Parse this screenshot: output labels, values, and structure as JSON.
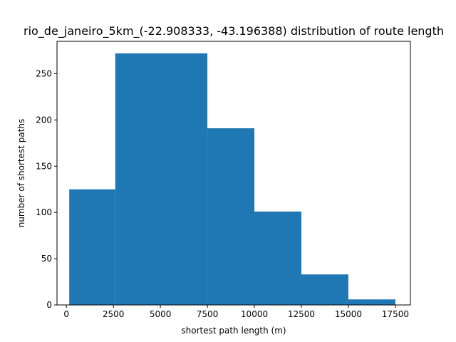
{
  "chart_data": {
    "type": "bar",
    "title": "rio_de_janeiro_5km_(-22.908333, -43.196388) distribution of route length",
    "xlabel": "shortest path length (m)",
    "ylabel": "number of shortest paths",
    "xlim": [
      -500,
      18300
    ],
    "ylim": [
      0,
      285
    ],
    "xticks": [
      0,
      2500,
      5000,
      7500,
      10000,
      12500,
      15000,
      17500
    ],
    "yticks": [
      0,
      50,
      100,
      150,
      200,
      250
    ],
    "bins": [
      {
        "x0": 150,
        "x1": 2600,
        "count": 125
      },
      {
        "x0": 2600,
        "x1": 7500,
        "count": 272
      },
      {
        "x0": 7500,
        "x1": 10000,
        "count": 191
      },
      {
        "x0": 10000,
        "x1": 12500,
        "count": 101
      },
      {
        "x0": 12500,
        "x1": 15000,
        "count": 33
      },
      {
        "x0": 15000,
        "x1": 17500,
        "count": 6
      }
    ],
    "bar_color": "#1f77b4",
    "grid": false,
    "legend": "none"
  }
}
